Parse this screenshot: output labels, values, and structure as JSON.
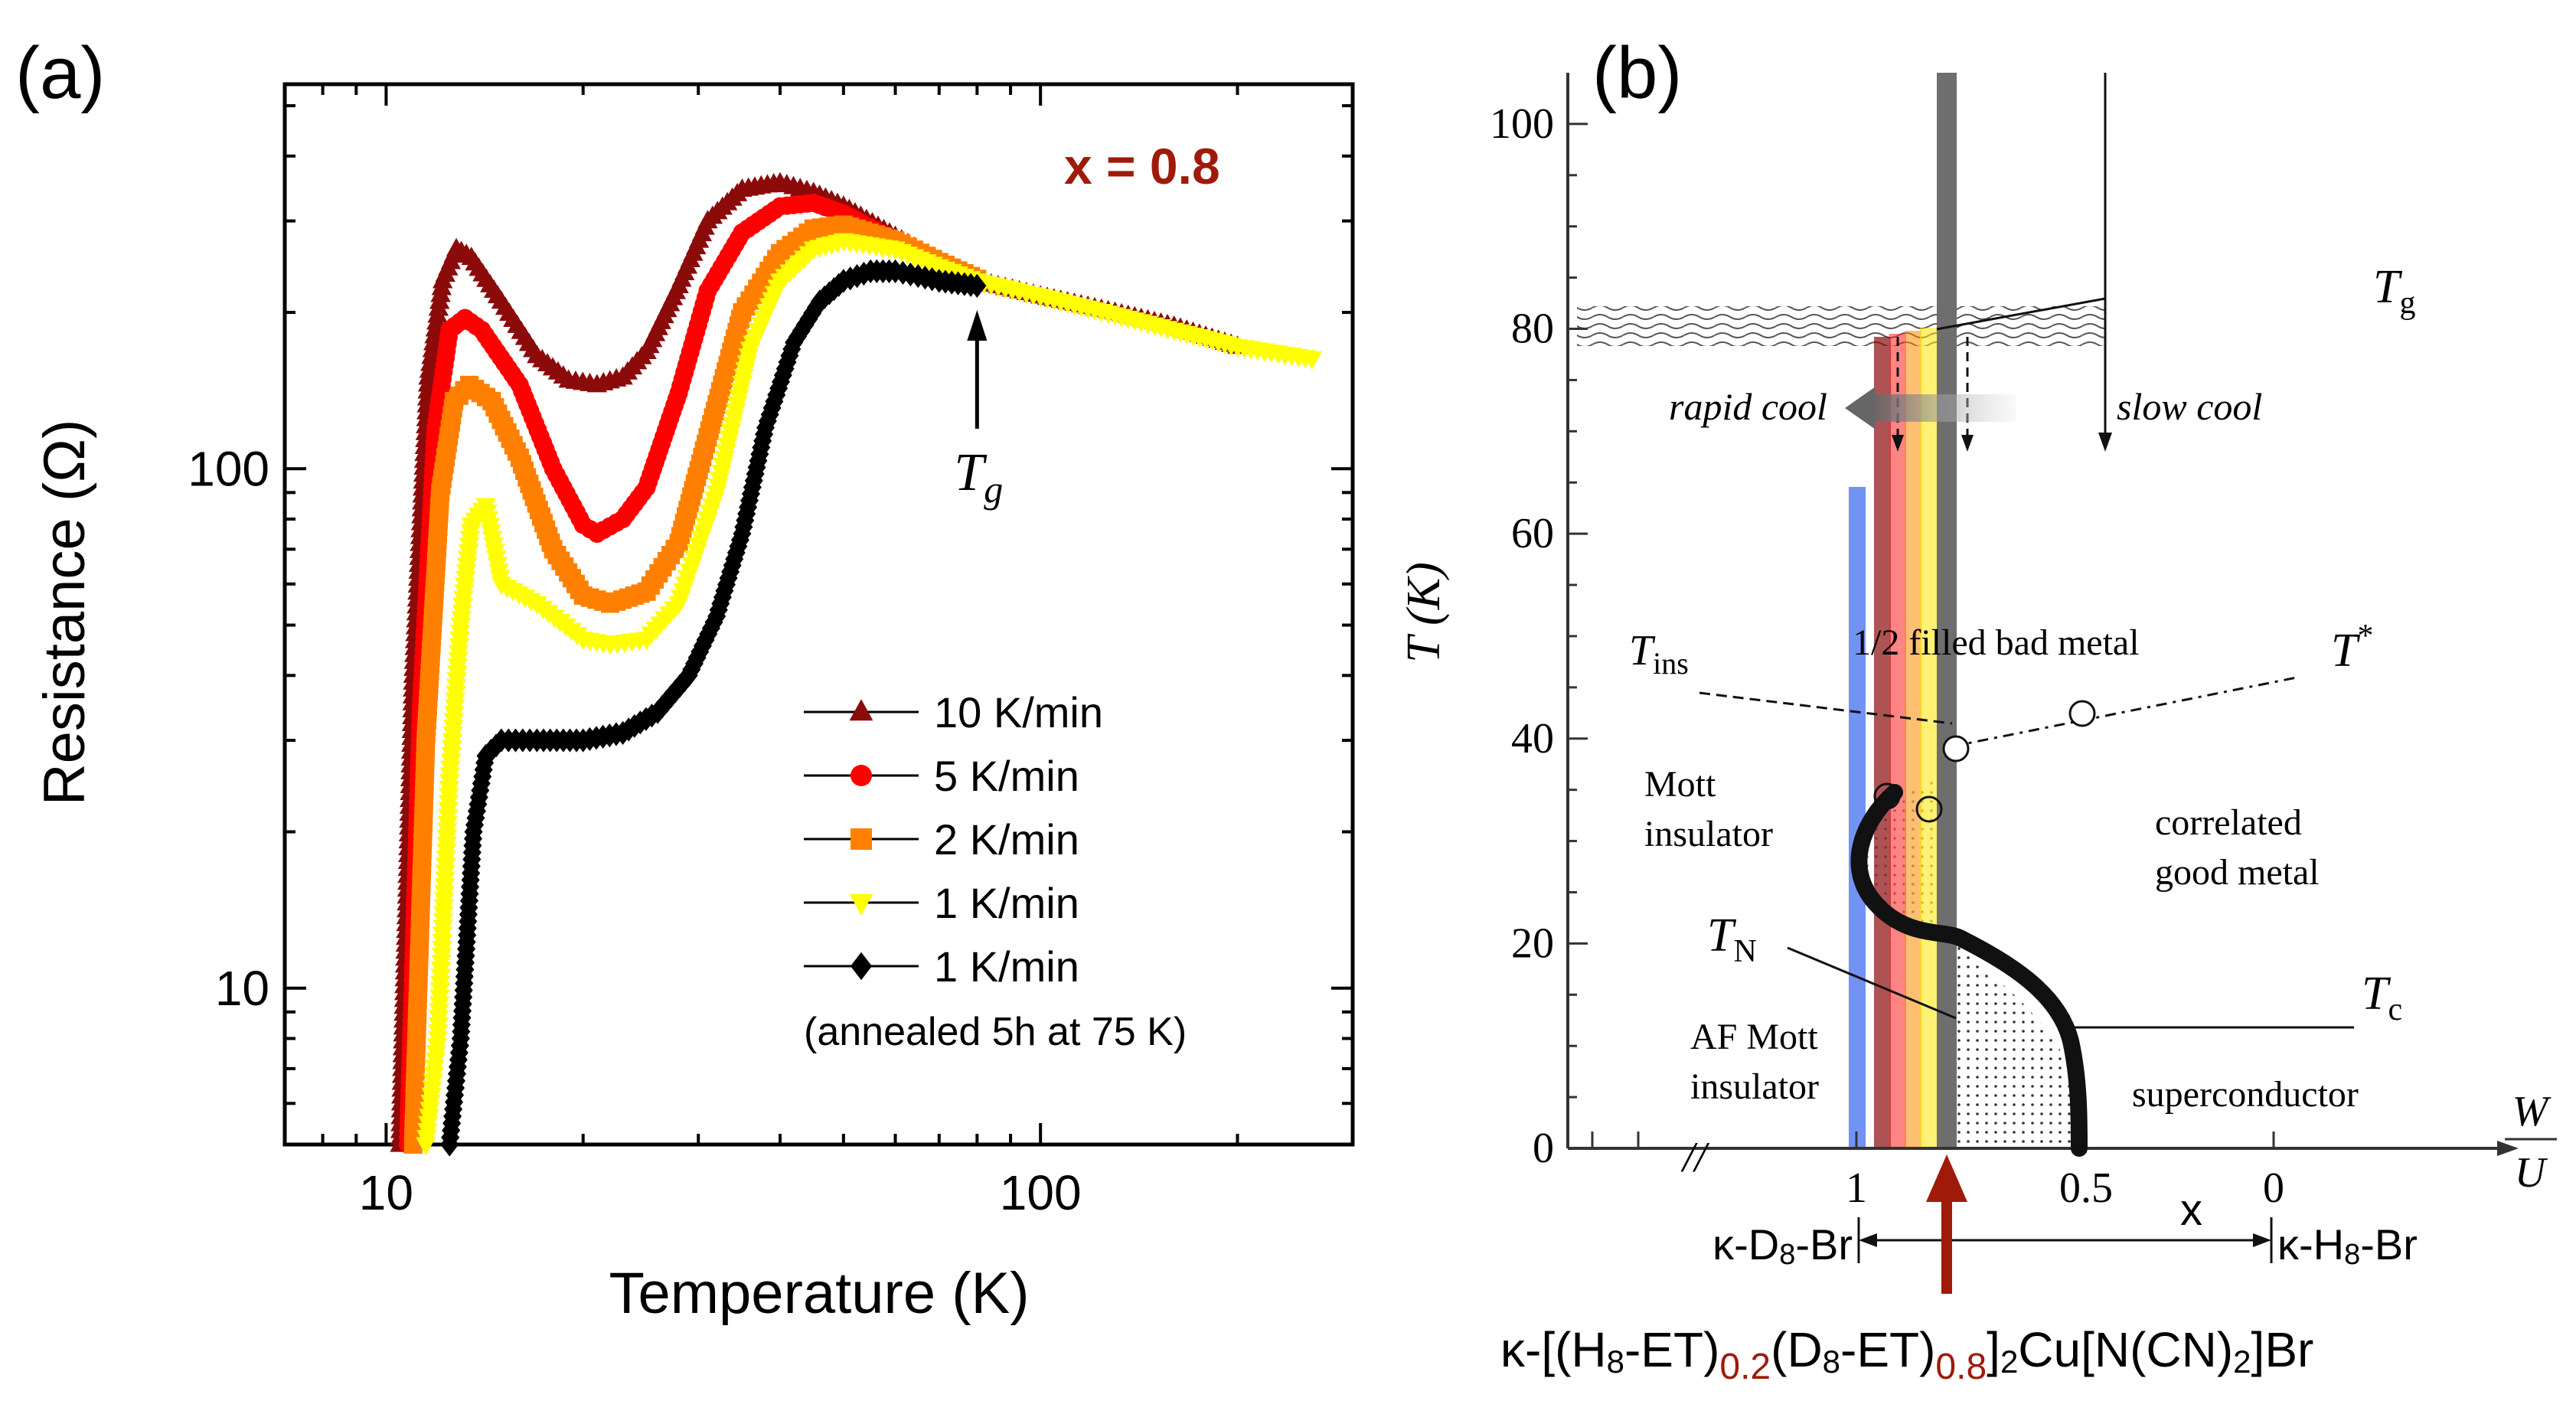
{
  "chart_data": [
    {
      "panel_label": "(a)",
      "type": "line",
      "xlabel": "Temperature (K)",
      "ylabel": "Resistance (Ω)",
      "xscale": "log",
      "yscale": "log",
      "xlim": [
        7,
        300
      ],
      "ylim": [
        5,
        550
      ],
      "xticks": [
        {
          "v": 10,
          "label": "10"
        },
        {
          "v": 100,
          "label": "100"
        }
      ],
      "yticks": [
        {
          "v": 10,
          "label": "10"
        },
        {
          "v": 100,
          "label": "100"
        }
      ],
      "annotation": "x = 0.8",
      "arrow_label_main": "T",
      "arrow_label_sub": "g",
      "arrow_at_T": 80,
      "legend_placement": "lower-right",
      "legend_note": "(annealed 5h at 75 K)",
      "series": [
        {
          "name": "10 K/min",
          "color": "#8b0a0a",
          "marker": "triangle-up",
          "x": [
            10.5,
            11.0,
            11.6,
            12.2,
            12.8,
            13.5,
            15,
            17,
            19,
            21,
            23,
            25,
            28,
            31,
            35,
            40,
            45,
            50,
            60,
            70,
            80,
            100,
            130,
            160,
            200
          ],
          "y": [
            5,
            40,
            150,
            230,
            265,
            255,
            210,
            165,
            148,
            145,
            150,
            168,
            225,
            300,
            345,
            355,
            340,
            320,
            280,
            250,
            230,
            215,
            200,
            188,
            172
          ]
        },
        {
          "name": "5 K/min",
          "color": "#ff0000",
          "marker": "circle",
          "x": [
            10.8,
            11.3,
            11.9,
            12.5,
            13.2,
            14,
            16,
            18,
            20,
            21,
            23,
            25,
            28,
            31,
            35,
            40,
            45,
            50,
            60,
            70,
            80
          ],
          "y": [
            5,
            35,
            120,
            185,
            195,
            185,
            145,
            100,
            78,
            75,
            80,
            92,
            140,
            220,
            285,
            320,
            325,
            310,
            275,
            248,
            230
          ]
        },
        {
          "name": "2 K/min",
          "color": "#ff8000",
          "marker": "square",
          "x": [
            11.0,
            11.5,
            12.1,
            12.7,
            13.4,
            14.5,
            16,
            18,
            20,
            22,
            25,
            28,
            31,
            35,
            40,
            45,
            50,
            60,
            70,
            80
          ],
          "y": [
            5,
            30,
            90,
            135,
            145,
            135,
            105,
            70,
            57,
            55,
            58,
            72,
            115,
            200,
            260,
            290,
            295,
            275,
            250,
            232
          ]
        },
        {
          "name": "1 K/min",
          "color": "#ffff00",
          "marker": "triangle-down",
          "x": [
            11.5,
            12.0,
            12.5,
            13.0,
            13.5,
            14.2,
            15,
            17,
            20,
            22,
            25,
            28,
            32,
            36,
            40,
            45,
            50,
            60,
            70,
            80,
            100,
            130,
            160,
            200,
            260
          ],
          "y": [
            5,
            8,
            25,
            50,
            78,
            85,
            60,
            55,
            47,
            46,
            47,
            55,
            90,
            170,
            230,
            265,
            275,
            265,
            245,
            230,
            215,
            198,
            185,
            172,
            163
          ]
        },
        {
          "name": "1 K/min",
          "color": "#000000",
          "marker": "diamond",
          "x": [
            12.5,
            13.0,
            13.6,
            14.2,
            15,
            17,
            20,
            23,
            26,
            29,
            32,
            35,
            38,
            42,
            46,
            50,
            55,
            60,
            65,
            70,
            80
          ],
          "y": [
            5,
            8,
            20,
            28,
            30,
            30,
            30,
            31,
            34,
            40,
            52,
            75,
            120,
            175,
            210,
            230,
            240,
            240,
            235,
            230,
            225
          ]
        }
      ]
    },
    {
      "panel_label": "(b)",
      "type": "phase-diagram",
      "ylabel": "T (K)",
      "xlabel": "x",
      "ylim": [
        0,
        105
      ],
      "yticks": [
        0,
        20,
        40,
        60,
        80,
        100
      ],
      "xtick_labels": [
        "1",
        "0.5",
        "0"
      ],
      "xaxis_break": "//",
      "axis_ratio_top": "W",
      "axis_ratio_bottom": "U",
      "Tg_main": "T",
      "Tg_sub": "g",
      "Tins_main": "T",
      "Tins_sub": "ins",
      "Tstar_main": "T",
      "Tstar_sup": "*",
      "TN_main": "T",
      "TN_sub": "N",
      "Tc_main": "T",
      "Tc_sub": "c",
      "labels": {
        "rapid_cool": "rapid cool",
        "slow_cool": "slow cool",
        "bad_metal": "1/2 filled bad metal",
        "mott_1": "Mott",
        "mott_2": "insulator",
        "good_metal_1": "correlated",
        "good_metal_2": "good metal",
        "af_1": "AF Mott",
        "af_2": "insulator",
        "sc": "superconductor"
      },
      "left_end": "κ-D8-Br",
      "right_end": "κ-H8-Br",
      "formula": "κ-[(H8-ET)0.2(D8-ET)0.8]2Cu[N(CN)2]Br",
      "formula_parts": {
        "p1": "κ-[(H",
        "p1s": "8",
        "p2": "-ET)",
        "sub1": "0.2",
        "p3": "(D",
        "p3s": "8",
        "p4": "-ET)",
        "sub2": "0.8",
        "p5": "]",
        "p5s": "2",
        "p6": "Cu[N(CN)",
        "p6s": "2",
        "p7": "]Br"
      },
      "colors": {
        "highlight": "#a01a0a",
        "blue_band": "#5b7ff5",
        "grey_band": "#6e6e6e"
      }
    }
  ]
}
